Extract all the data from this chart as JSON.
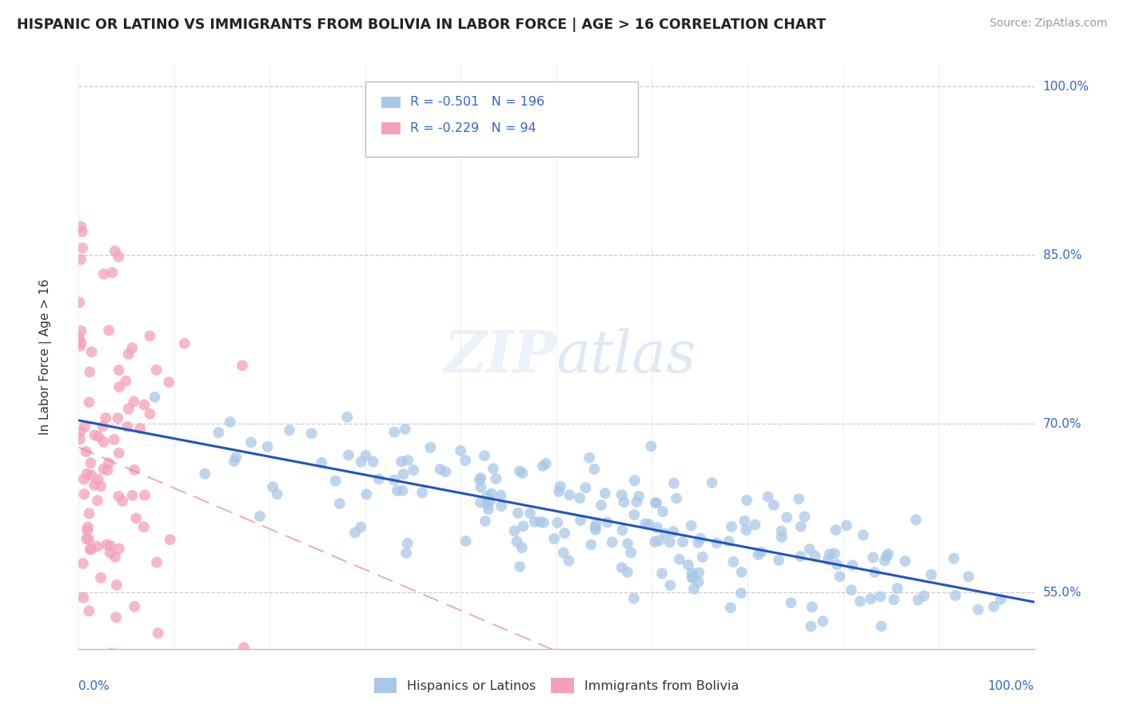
{
  "title": "HISPANIC OR LATINO VS IMMIGRANTS FROM BOLIVIA IN LABOR FORCE | AGE > 16 CORRELATION CHART",
  "source": "Source: ZipAtlas.com",
  "ylabel": "In Labor Force | Age > 16",
  "r_blue": -0.501,
  "n_blue": 196,
  "r_pink": -0.229,
  "n_pink": 94,
  "blue_dot_color": "#a8c8e8",
  "pink_dot_color": "#f4a0b8",
  "blue_line_color": "#2255bb",
  "pink_line_color": "#dd8899",
  "background_color": "#ffffff",
  "legend_label_blue": "Hispanics or Latinos",
  "legend_label_pink": "Immigrants from Bolivia",
  "ymin": 0.5,
  "ymax": 1.02,
  "xmin": 0.0,
  "xmax": 1.0,
  "y_ticks": [
    0.55,
    0.7,
    0.85,
    1.0
  ],
  "y_tick_labels": [
    "55.0%",
    "70.0%",
    "85.0%",
    "100.0%"
  ]
}
